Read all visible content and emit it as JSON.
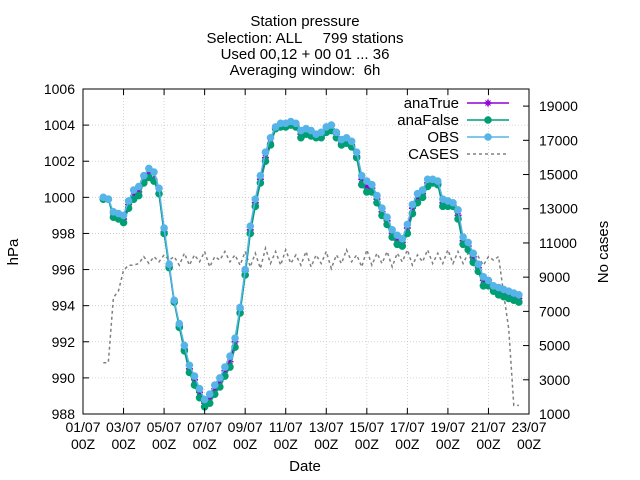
{
  "chart_data": {
    "type": "line",
    "title_lines": [
      "Station pressure",
      "Selection: ALL     799 stations",
      "Used 00,12 + 00 01 ... 36",
      "Averaging window:  6h"
    ],
    "xlabel": "Date",
    "ylabel": "hPa",
    "y2label": "No cases",
    "x_ticks": [
      {
        "line1": "01/07",
        "line2": "00Z"
      },
      {
        "line1": "03/07",
        "line2": "00Z"
      },
      {
        "line1": "05/07",
        "line2": "00Z"
      },
      {
        "line1": "07/07",
        "line2": "00Z"
      },
      {
        "line1": "09/07",
        "line2": "00Z"
      },
      {
        "line1": "11/07",
        "line2": "00Z"
      },
      {
        "line1": "13/07",
        "line2": "00Z"
      },
      {
        "line1": "15/07",
        "line2": "00Z"
      },
      {
        "line1": "17/07",
        "line2": "00Z"
      },
      {
        "line1": "19/07",
        "line2": "00Z"
      },
      {
        "line1": "21/07",
        "line2": "00Z"
      },
      {
        "line1": "23/07",
        "line2": "00Z"
      }
    ],
    "xlim_days": [
      0,
      22
    ],
    "ylim": [
      988,
      1006
    ],
    "y_ticks": [
      988,
      990,
      992,
      994,
      996,
      998,
      1000,
      1002,
      1004,
      1006
    ],
    "y2lim": [
      1000,
      20000
    ],
    "y2_ticks": [
      1000,
      3000,
      5000,
      7000,
      9000,
      11000,
      13000,
      15000,
      17000,
      19000
    ],
    "legend_position": "top-right",
    "grid": true,
    "series": [
      {
        "name": "anaTrue",
        "color": "#9400d3",
        "marker": "plus",
        "x": [
          1.0,
          1.25,
          1.5,
          1.75,
          2.0,
          2.25,
          2.5,
          2.75,
          3.0,
          3.25,
          3.5,
          3.75,
          4.0,
          4.25,
          4.5,
          4.75,
          5.0,
          5.25,
          5.5,
          5.75,
          6.0,
          6.25,
          6.5,
          6.75,
          7.0,
          7.25,
          7.5,
          7.75,
          8.0,
          8.25,
          8.5,
          8.75,
          9.0,
          9.25,
          9.5,
          9.75,
          10.0,
          10.25,
          10.5,
          10.75,
          11.0,
          11.25,
          11.5,
          11.75,
          12.0,
          12.25,
          12.5,
          12.75,
          13.0,
          13.25,
          13.5,
          13.75,
          14.0,
          14.25,
          14.5,
          14.75,
          15.0,
          15.25,
          15.5,
          15.75,
          16.0,
          16.25,
          16.5,
          16.75,
          17.0,
          17.25,
          17.5,
          17.75,
          18.0,
          18.25,
          18.5,
          18.75,
          19.0,
          19.25,
          19.5,
          19.75,
          20.0,
          20.25,
          20.5,
          20.75,
          21.0,
          21.25,
          21.5
        ],
        "y": [
          999.9,
          999.9,
          999.1,
          999.0,
          998.8,
          999.6,
          1000.1,
          1000.3,
          1000.9,
          1001.3,
          1001.0,
          1000.2,
          998.1,
          996.2,
          994.2,
          992.9,
          991.6,
          990.5,
          989.9,
          989.2,
          988.6,
          988.9,
          989.4,
          989.8,
          990.4,
          990.9,
          992.0,
          993.8,
          995.9,
          998.2,
          999.7,
          1001.0,
          1002.2,
          1003.0,
          1003.8,
          1004.0,
          1004.0,
          1004.1,
          1004.0,
          1003.5,
          1003.6,
          1003.6,
          1003.4,
          1003.4,
          1003.7,
          1003.8,
          1003.5,
          1003.0,
          1003.1,
          1002.9,
          1002.3,
          1001.0,
          1000.6,
          1000.5,
          999.9,
          999.2,
          998.7,
          998.0,
          997.7,
          997.5,
          998.3,
          999.4,
          999.9,
          1000.2,
          1000.8,
          1000.9,
          1000.8,
          999.7,
          999.7,
          999.6,
          999.0,
          997.6,
          997.3,
          996.7,
          996.1,
          995.4,
          995.3,
          994.9,
          994.8,
          994.7,
          994.6,
          994.5,
          994.4
        ]
      },
      {
        "name": "anaFalse",
        "color": "#009e73",
        "marker": "star",
        "x": [
          1.0,
          1.25,
          1.5,
          1.75,
          2.0,
          2.25,
          2.5,
          2.75,
          3.0,
          3.25,
          3.5,
          3.75,
          4.0,
          4.25,
          4.5,
          4.75,
          5.0,
          5.25,
          5.5,
          5.75,
          6.0,
          6.25,
          6.5,
          6.75,
          7.0,
          7.25,
          7.5,
          7.75,
          8.0,
          8.25,
          8.5,
          8.75,
          9.0,
          9.25,
          9.5,
          9.75,
          10.0,
          10.25,
          10.5,
          10.75,
          11.0,
          11.25,
          11.5,
          11.75,
          12.0,
          12.25,
          12.5,
          12.75,
          13.0,
          13.25,
          13.5,
          13.75,
          14.0,
          14.25,
          14.5,
          14.75,
          15.0,
          15.25,
          15.5,
          15.75,
          16.0,
          16.25,
          16.5,
          16.75,
          17.0,
          17.25,
          17.5,
          17.75,
          18.0,
          18.25,
          18.5,
          18.75,
          19.0,
          19.25,
          19.5,
          19.75,
          20.0,
          20.25,
          20.5,
          20.75,
          21.0,
          21.25,
          21.5
        ],
        "y": [
          999.9,
          999.9,
          998.9,
          998.8,
          998.6,
          999.4,
          999.9,
          1000.1,
          1000.8,
          1001.1,
          1000.9,
          1000.2,
          998.0,
          996.1,
          994.2,
          992.8,
          991.5,
          990.3,
          989.6,
          988.9,
          988.4,
          988.6,
          989.1,
          989.5,
          990.1,
          990.6,
          991.7,
          993.6,
          995.7,
          998.0,
          999.5,
          1000.8,
          1002.0,
          1002.9,
          1003.8,
          1003.9,
          1003.9,
          1004.0,
          1003.9,
          1003.3,
          1003.5,
          1003.4,
          1003.3,
          1003.3,
          1003.6,
          1003.7,
          1003.3,
          1002.9,
          1003.0,
          1002.8,
          1002.2,
          1000.7,
          1000.3,
          1000.3,
          999.7,
          999.0,
          998.5,
          997.8,
          997.4,
          997.3,
          998.0,
          999.1,
          999.7,
          1000.0,
          1000.6,
          1000.8,
          1000.7,
          999.5,
          999.5,
          999.5,
          998.8,
          997.4,
          997.1,
          996.4,
          995.9,
          995.1,
          995.1,
          994.8,
          994.6,
          994.5,
          994.4,
          994.3,
          994.2
        ]
      },
      {
        "name": "OBS",
        "color": "#56b4e9",
        "marker": "star",
        "x": [
          1.0,
          1.25,
          1.5,
          1.75,
          2.0,
          2.25,
          2.5,
          2.75,
          3.0,
          3.25,
          3.5,
          3.75,
          4.0,
          4.25,
          4.5,
          4.75,
          5.0,
          5.25,
          5.5,
          5.75,
          6.0,
          6.25,
          6.5,
          6.75,
          7.0,
          7.25,
          7.5,
          7.75,
          8.0,
          8.25,
          8.5,
          8.75,
          9.0,
          9.25,
          9.5,
          9.75,
          10.0,
          10.25,
          10.5,
          10.75,
          11.0,
          11.25,
          11.5,
          11.75,
          12.0,
          12.25,
          12.5,
          12.75,
          13.0,
          13.25,
          13.5,
          13.75,
          14.0,
          14.25,
          14.5,
          14.75,
          15.0,
          15.25,
          15.5,
          15.75,
          16.0,
          16.25,
          16.5,
          16.75,
          17.0,
          17.25,
          17.5,
          17.75,
          18.0,
          18.25,
          18.5,
          18.75,
          19.0,
          19.25,
          19.5,
          19.75,
          20.0,
          20.25,
          20.5,
          20.75,
          21.0,
          21.25,
          21.5
        ],
        "y": [
          1000.0,
          999.9,
          999.2,
          999.1,
          999.0,
          999.8,
          1000.4,
          1000.6,
          1001.2,
          1001.6,
          1001.4,
          1000.5,
          998.3,
          996.3,
          994.3,
          993.0,
          991.8,
          990.7,
          990.1,
          989.4,
          988.8,
          989.1,
          989.6,
          990.0,
          990.6,
          991.2,
          992.2,
          993.9,
          996.0,
          998.4,
          999.9,
          1001.2,
          1002.5,
          1003.3,
          1003.9,
          1004.1,
          1004.1,
          1004.2,
          1004.1,
          1003.7,
          1003.8,
          1003.7,
          1003.5,
          1003.6,
          1003.9,
          1004.0,
          1003.6,
          1003.2,
          1003.3,
          1003.1,
          1002.5,
          1001.2,
          1000.9,
          1000.7,
          1000.1,
          999.4,
          998.9,
          998.2,
          997.9,
          997.7,
          998.5,
          999.6,
          1000.2,
          1000.4,
          1001.0,
          1001.0,
          1000.9,
          999.9,
          999.8,
          999.7,
          999.3,
          997.8,
          997.5,
          996.9,
          996.3,
          995.6,
          995.4,
          995.1,
          995.0,
          994.9,
          994.8,
          994.7,
          994.6
        ]
      },
      {
        "name": "CASES",
        "color": "#808080",
        "marker": "none",
        "axis": "y2",
        "x": [
          1.0,
          1.25,
          1.5,
          1.75,
          2.0,
          2.25,
          2.5,
          2.75,
          3.0,
          3.25,
          3.5,
          3.75,
          4.0,
          4.25,
          4.5,
          4.75,
          5.0,
          5.25,
          5.5,
          5.75,
          6.0,
          6.25,
          6.5,
          6.75,
          7.0,
          7.25,
          7.5,
          7.75,
          8.0,
          8.25,
          8.5,
          8.75,
          9.0,
          9.25,
          9.5,
          9.75,
          10.0,
          10.25,
          10.5,
          10.75,
          11.0,
          11.25,
          11.5,
          11.75,
          12.0,
          12.25,
          12.5,
          12.75,
          13.0,
          13.25,
          13.5,
          13.75,
          14.0,
          14.25,
          14.5,
          14.75,
          15.0,
          15.25,
          15.5,
          15.75,
          16.0,
          16.25,
          16.5,
          16.75,
          17.0,
          17.25,
          17.5,
          17.75,
          18.0,
          18.25,
          18.5,
          18.75,
          19.0,
          19.25,
          19.5,
          19.75,
          20.0,
          20.25,
          20.5,
          20.75,
          21.0,
          21.25,
          21.5
        ],
        "y": [
          4000,
          4000,
          7800,
          8200,
          9400,
          9700,
          9700,
          9800,
          10200,
          9800,
          10200,
          9900,
          10300,
          10000,
          10200,
          9700,
          10400,
          9700,
          10300,
          9900,
          10500,
          9600,
          10200,
          10000,
          10500,
          9900,
          10300,
          9700,
          10500,
          9600,
          10400,
          9500,
          10700,
          9800,
          10500,
          9700,
          10600,
          9800,
          10300,
          9700,
          10500,
          9600,
          10300,
          9800,
          10500,
          9500,
          10300,
          9800,
          10600,
          9900,
          10300,
          9600,
          10600,
          9700,
          10400,
          9800,
          10500,
          9600,
          10400,
          9900,
          10600,
          9700,
          10300,
          9900,
          10600,
          9800,
          10400,
          9800,
          10600,
          9800,
          10500,
          9800,
          10400,
          9700,
          10200,
          9700,
          10200,
          10000,
          10200,
          8000,
          6000,
          1500,
          1500
        ]
      }
    ]
  }
}
